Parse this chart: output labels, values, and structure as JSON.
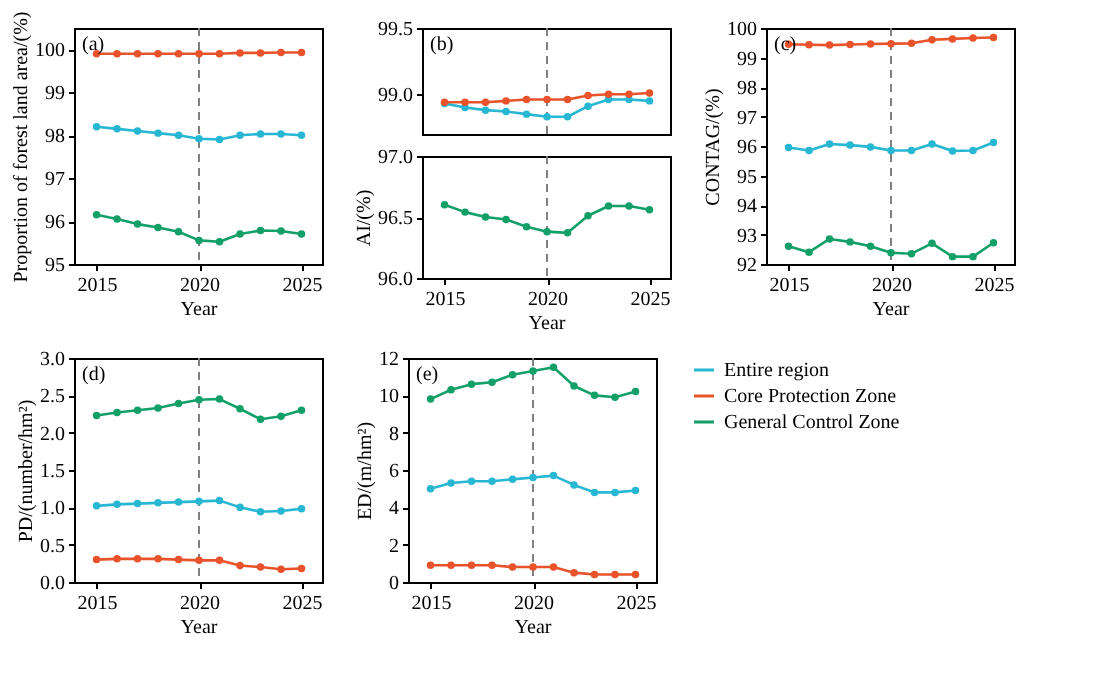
{
  "chart_data": [
    {
      "type": "line",
      "annotations": [
        "(a)"
      ],
      "xlabel": "Year",
      "ylabel": "Proportion of forest land area/(%)",
      "x": [
        2015,
        2016,
        2017,
        2018,
        2019,
        2020,
        2021,
        2022,
        2023,
        2024,
        2025
      ],
      "xlim": [
        2013.9,
        2026
      ],
      "xticks": [
        2015,
        2020,
        2025
      ],
      "ylim": [
        95,
        100.5
      ],
      "yticks": [
        95,
        96,
        97,
        98,
        99,
        100
      ],
      "marker": "circle",
      "line_style": "solid",
      "grid": false,
      "ref_lines": [
        {
          "axis": "x",
          "value": 2020,
          "color": "#7f7f7f",
          "line_style": "dashed"
        }
      ],
      "series": [
        {
          "color": "#27b7d3",
          "values": [
            98.2,
            98.15,
            98.1,
            98.05,
            98.0,
            97.92,
            97.9,
            98.0,
            98.03,
            98.03,
            98.0
          ]
        },
        {
          "color": "#e8532b",
          "values": [
            99.9,
            99.9,
            99.9,
            99.9,
            99.9,
            99.9,
            99.9,
            99.92,
            99.92,
            99.93,
            99.93
          ]
        },
        {
          "color": "#13a068",
          "values": [
            96.15,
            96.05,
            95.93,
            95.85,
            95.75,
            95.55,
            95.52,
            95.7,
            95.78,
            95.77,
            95.7
          ]
        }
      ]
    },
    {
      "type": "line",
      "annotations": [
        "(b)"
      ],
      "x": [
        2015,
        2016,
        2017,
        2018,
        2019,
        2020,
        2021,
        2022,
        2023,
        2024,
        2025
      ],
      "xlim": [
        2013.9,
        2026
      ],
      "ylim": [
        98.7,
        99.5
      ],
      "yticks": [
        {
          "value": 99,
          "label": "99.0"
        },
        99.5
      ],
      "tick_labels": "y",
      "marker": "circle",
      "line_style": "solid",
      "grid": false,
      "ref_lines": [
        {
          "axis": "x",
          "value": 2020,
          "color": "#7f7f7f",
          "line_style": "dashed"
        }
      ],
      "series": [
        {
          "color": "#27b7d3",
          "values": [
            98.93,
            98.9,
            98.88,
            98.87,
            98.85,
            98.83,
            98.83,
            98.91,
            98.96,
            98.96,
            98.95
          ]
        },
        {
          "color": "#e8532b",
          "values": [
            98.94,
            98.94,
            98.94,
            98.95,
            98.96,
            98.96,
            98.96,
            98.99,
            99.0,
            99.0,
            99.01
          ]
        }
      ]
    },
    {
      "type": "line",
      "xlabel": "Year",
      "ylabel": "AI/(%)",
      "x": [
        2015,
        2016,
        2017,
        2018,
        2019,
        2020,
        2021,
        2022,
        2023,
        2024,
        2025
      ],
      "xlim": [
        2013.9,
        2026
      ],
      "xticks": [
        2015,
        2020,
        2025
      ],
      "ylim": [
        96,
        97
      ],
      "yticks": [
        {
          "value": 96,
          "label": "96.0"
        },
        96.5,
        {
          "value": 97,
          "label": "97.0"
        }
      ],
      "marker": "circle",
      "line_style": "solid",
      "grid": false,
      "ref_lines": [
        {
          "axis": "x",
          "value": 2020,
          "color": "#7f7f7f",
          "line_style": "dashed"
        }
      ],
      "series": [
        {
          "color": "#13a068",
          "values": [
            96.6,
            96.54,
            96.5,
            96.48,
            96.42,
            96.38,
            96.37,
            96.51,
            96.59,
            96.59,
            96.56
          ]
        }
      ]
    },
    {
      "type": "line",
      "annotations": [
        "(c)"
      ],
      "xlabel": "Year",
      "ylabel": "CONTAG/(%)",
      "x": [
        2015,
        2016,
        2017,
        2018,
        2019,
        2020,
        2021,
        2022,
        2023,
        2024,
        2025
      ],
      "xlim": [
        2013.9,
        2026
      ],
      "xticks": [
        2015,
        2020,
        2025
      ],
      "ylim": [
        92,
        100
      ],
      "yticks": [
        92,
        93,
        94,
        95,
        96,
        97,
        98,
        99,
        100
      ],
      "marker": "circle",
      "line_style": "solid",
      "grid": false,
      "ref_lines": [
        {
          "axis": "x",
          "value": 2020,
          "color": "#7f7f7f",
          "line_style": "dashed"
        }
      ],
      "series": [
        {
          "color": "#27b7d3",
          "values": [
            95.95,
            95.85,
            96.07,
            96.03,
            95.97,
            95.85,
            95.85,
            96.07,
            95.83,
            95.85,
            96.12
          ]
        },
        {
          "color": "#e8532b",
          "values": [
            99.45,
            99.43,
            99.42,
            99.44,
            99.46,
            99.47,
            99.48,
            99.6,
            99.63,
            99.66,
            99.68
          ]
        },
        {
          "color": "#13a068",
          "values": [
            92.6,
            92.4,
            92.85,
            92.75,
            92.6,
            92.38,
            92.35,
            92.7,
            92.25,
            92.25,
            92.72
          ]
        }
      ]
    },
    {
      "type": "line",
      "annotations": [
        "(d)"
      ],
      "xlabel": "Year",
      "ylabel": "PD/(number/hm²)",
      "x": [
        2015,
        2016,
        2017,
        2018,
        2019,
        2020,
        2021,
        2022,
        2023,
        2024,
        2025
      ],
      "xlim": [
        2013.9,
        2026
      ],
      "xticks": [
        2015,
        2020,
        2025
      ],
      "ylim": [
        0,
        3
      ],
      "yticks": [
        {
          "value": 0,
          "label": "0.0"
        },
        0.5,
        {
          "value": 1,
          "label": "1.0"
        },
        1.5,
        {
          "value": 2,
          "label": "2.0"
        },
        2.5,
        {
          "value": 3,
          "label": "3.0"
        }
      ],
      "marker": "circle",
      "line_style": "solid",
      "grid": false,
      "ref_lines": [
        {
          "axis": "x",
          "value": 2020,
          "color": "#7f7f7f",
          "line_style": "dashed"
        }
      ],
      "series": [
        {
          "color": "#27b7d3",
          "values": [
            1.02,
            1.04,
            1.05,
            1.06,
            1.07,
            1.08,
            1.09,
            1.0,
            0.94,
            0.95,
            0.98
          ]
        },
        {
          "color": "#e8532b",
          "values": [
            0.3,
            0.31,
            0.31,
            0.31,
            0.3,
            0.29,
            0.29,
            0.22,
            0.2,
            0.17,
            0.18
          ]
        },
        {
          "color": "#13a068",
          "values": [
            2.23,
            2.27,
            2.3,
            2.33,
            2.39,
            2.44,
            2.45,
            2.32,
            2.18,
            2.22,
            2.3
          ]
        }
      ]
    },
    {
      "type": "line",
      "annotations": [
        "(e)"
      ],
      "xlabel": "Year",
      "ylabel": "ED/(m/hm²)",
      "x": [
        2015,
        2016,
        2017,
        2018,
        2019,
        2020,
        2021,
        2022,
        2023,
        2024,
        2025
      ],
      "xlim": [
        2013.9,
        2026
      ],
      "xticks": [
        2015,
        2020,
        2025
      ],
      "ylim": [
        0,
        12
      ],
      "yticks": [
        0,
        2,
        4,
        6,
        8,
        10,
        12
      ],
      "marker": "circle",
      "line_style": "solid",
      "grid": false,
      "legend": "right",
      "ref_lines": [
        {
          "axis": "x",
          "value": 2020,
          "color": "#7f7f7f",
          "line_style": "dashed"
        }
      ],
      "series": [
        {
          "name": "Entire region",
          "color": "#27b7d3",
          "values": [
            5.0,
            5.3,
            5.4,
            5.4,
            5.5,
            5.6,
            5.7,
            5.2,
            4.8,
            4.8,
            4.9
          ]
        },
        {
          "name": "Core Protection Zone",
          "color": "#e8532b",
          "values": [
            0.9,
            0.9,
            0.9,
            0.9,
            0.8,
            0.8,
            0.8,
            0.5,
            0.4,
            0.4,
            0.4
          ]
        },
        {
          "name": "General Control Zone",
          "color": "#13a068",
          "values": [
            9.8,
            10.3,
            10.6,
            10.7,
            11.1,
            11.3,
            11.5,
            10.5,
            10.0,
            9.9,
            10.2
          ]
        }
      ]
    }
  ]
}
